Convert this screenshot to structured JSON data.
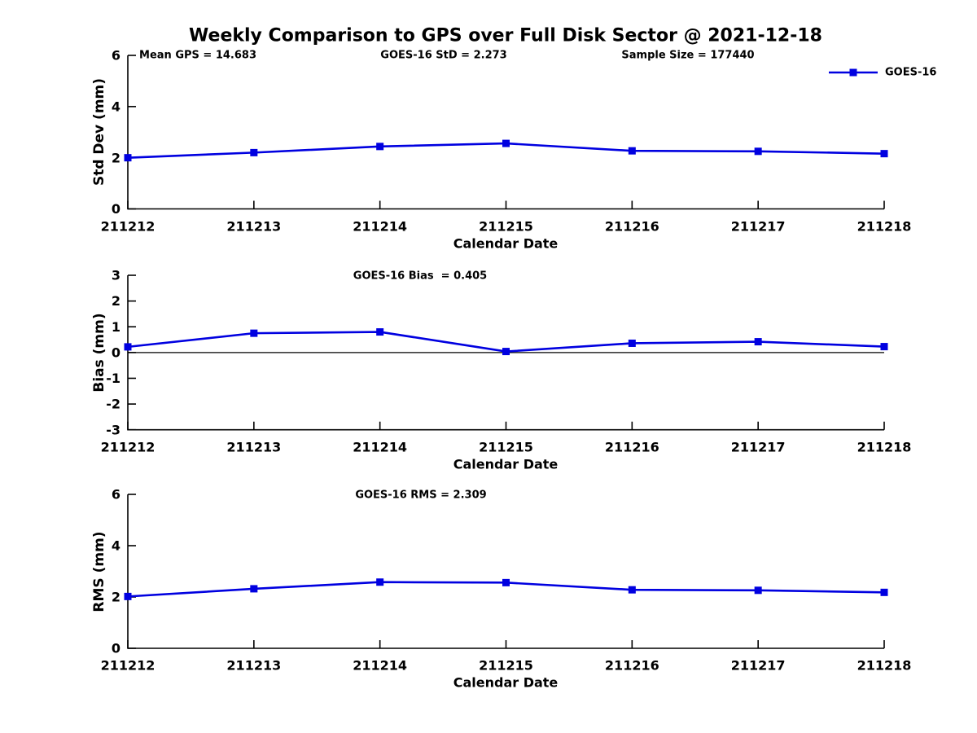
{
  "title": "Weekly Comparison to GPS over Full Disk Sector @ 2021-12-18",
  "legend": {
    "label": "GOES-16"
  },
  "colors": {
    "series": "#0000e0",
    "axis": "#000000"
  },
  "chart_data": [
    {
      "type": "line",
      "ylabel": "Std Dev (mm)",
      "xlabel": "Calendar Date",
      "categories": [
        "211212",
        "211213",
        "211214",
        "211215",
        "211216",
        "211217",
        "211218"
      ],
      "series": [
        {
          "name": "GOES-16",
          "values": [
            2.0,
            2.2,
            2.44,
            2.56,
            2.27,
            2.25,
            2.16
          ]
        }
      ],
      "ylim": [
        0,
        6
      ],
      "yticks": [
        0,
        2,
        4,
        6
      ],
      "grid": false,
      "legend_position": "top-right",
      "annotations": [
        {
          "text": "Mean GPS = 14.683"
        },
        {
          "text": "GOES-16 StD = 2.273"
        },
        {
          "text": "Sample Size = 177440"
        }
      ]
    },
    {
      "type": "line",
      "ylabel": "Bias (mm)",
      "xlabel": "Calendar Date",
      "categories": [
        "211212",
        "211213",
        "211214",
        "211215",
        "211216",
        "211217",
        "211218"
      ],
      "series": [
        {
          "name": "GOES-16",
          "values": [
            0.22,
            0.75,
            0.8,
            0.04,
            0.36,
            0.42,
            0.23
          ]
        }
      ],
      "ylim": [
        -3,
        3
      ],
      "yticks": [
        3,
        2,
        1,
        0,
        -1,
        -2,
        -3
      ],
      "zero_line": true,
      "grid": false,
      "annotations": [
        {
          "text": "GOES-16 Bias  = 0.405"
        }
      ]
    },
    {
      "type": "line",
      "ylabel": "RMS (mm)",
      "xlabel": "Calendar Date",
      "categories": [
        "211212",
        "211213",
        "211214",
        "211215",
        "211216",
        "211217",
        "211218"
      ],
      "series": [
        {
          "name": "GOES-16",
          "values": [
            2.02,
            2.32,
            2.58,
            2.56,
            2.28,
            2.26,
            2.18
          ]
        }
      ],
      "ylim": [
        0,
        6
      ],
      "yticks": [
        0,
        2,
        4,
        6
      ],
      "grid": false,
      "annotations": [
        {
          "text": "GOES-16 RMS = 2.309"
        }
      ]
    }
  ]
}
